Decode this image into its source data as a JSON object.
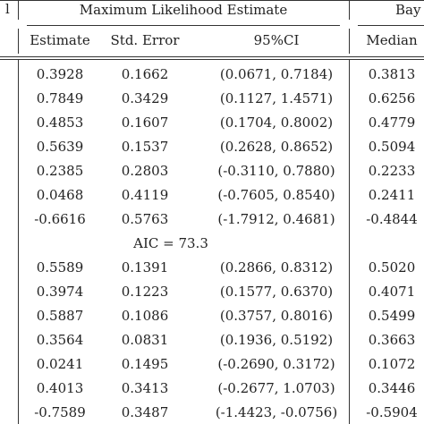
{
  "header": {
    "left_fragment": "l",
    "group_mle": "Maximum Likelihood Estimate",
    "group_bayes": "Bay",
    "columns": [
      "Estimate",
      "Std. Error",
      "95%CI",
      "Median"
    ]
  },
  "block1": {
    "rows": [
      [
        "0.3928",
        "0.1662",
        "(0.0671, 0.7184)",
        "0.3813"
      ],
      [
        "0.7849",
        "0.3429",
        "(0.1127, 1.4571)",
        "0.6256"
      ],
      [
        "0.4853",
        "0.1607",
        "(0.1704, 0.8002)",
        "0.4779"
      ],
      [
        "0.5639",
        "0.1537",
        "(0.2628, 0.8652)",
        "0.5094"
      ],
      [
        "0.2385",
        "0.2803",
        "(-0.3110, 0.7880)",
        "0.2233"
      ],
      [
        "0.0468",
        "0.4119",
        "(-0.7605, 0.8540)",
        "0.2411"
      ],
      [
        "-0.6616",
        "0.5763",
        "(-1.7912, 0.4681)",
        "-0.4844"
      ]
    ],
    "aic": "AIC = 73.3"
  },
  "block2": {
    "rows": [
      [
        "0.5589",
        "0.1391",
        "(0.2866, 0.8312)",
        "0.5020"
      ],
      [
        "0.3974",
        "0.1223",
        "(0.1577, 0.6370)",
        "0.4071"
      ],
      [
        "0.5887",
        "0.1086",
        "(0.3757, 0.8016)",
        "0.5499"
      ],
      [
        "0.3564",
        "0.0831",
        "(0.1936, 0.5192)",
        "0.3663"
      ],
      [
        "0.0241",
        "0.1495",
        "(-0.2690, 0.3172)",
        "0.1072"
      ],
      [
        "0.4013",
        "0.3413",
        "(-0.2677, 1.0703)",
        "0.3446"
      ],
      [
        "-0.7589",
        "0.3487",
        "(-1.4423, -0.0756)",
        "-0.5904"
      ]
    ]
  }
}
